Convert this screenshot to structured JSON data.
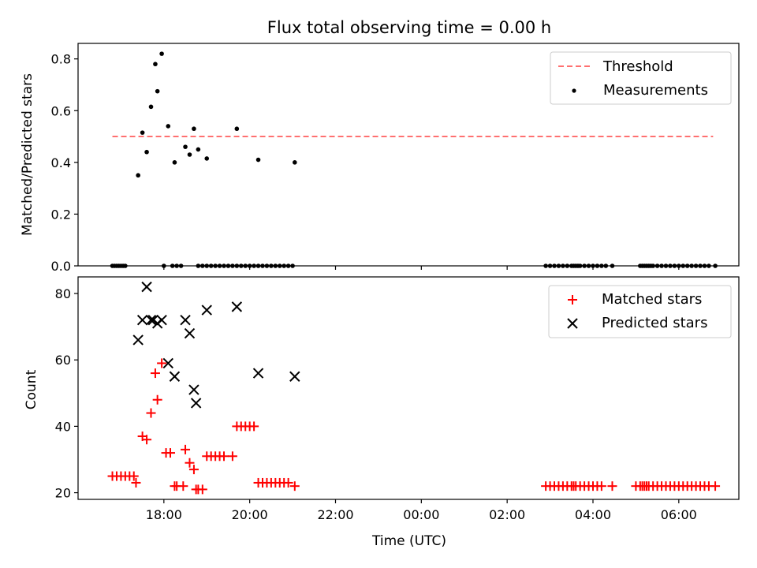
{
  "figure_title": "Flux total observing time = 0.00 h",
  "chart_data": [
    {
      "type": "scatter",
      "ylabel": "Matched/Predicted stars",
      "xlabel": "",
      "xlim_hours": [
        16.0,
        31.4
      ],
      "ylim": [
        0.0,
        0.86
      ],
      "yticks": [
        0.0,
        0.2,
        0.4,
        0.6,
        0.8
      ],
      "ytick_labels": [
        "0.0",
        "0.2",
        "0.4",
        "0.6",
        "0.8"
      ],
      "xticks_hours": [
        18,
        20,
        22,
        24,
        26,
        28,
        30
      ],
      "legend": {
        "placement": "upper right",
        "entries": [
          "Threshold",
          "Measurements"
        ]
      },
      "series": [
        {
          "name": "Threshold",
          "kind": "line",
          "style": "dashed",
          "color": "#ff7070",
          "x": [
            16.8,
            30.8
          ],
          "y": [
            0.5,
            0.5
          ]
        },
        {
          "name": "Measurements",
          "kind": "scatter",
          "color": "#000000",
          "x": [
            16.8,
            16.85,
            16.9,
            16.95,
            17.0,
            17.05,
            17.1,
            17.4,
            17.5,
            17.6,
            17.7,
            17.8,
            17.85,
            17.95,
            18.1,
            18.25,
            18.5,
            18.6,
            18.7,
            18.8,
            19.0,
            19.7,
            20.2,
            21.05,
            18.0,
            18.2,
            18.3,
            18.4,
            18.8,
            18.9,
            19.0,
            19.1,
            19.2,
            19.3,
            19.4,
            19.5,
            19.6,
            19.7,
            19.8,
            19.9,
            20.0,
            20.1,
            20.2,
            20.3,
            20.4,
            20.5,
            20.6,
            20.7,
            20.8,
            20.9,
            21.0,
            26.9,
            27.0,
            27.1,
            27.2,
            27.3,
            27.4,
            27.5,
            27.55,
            27.6,
            27.65,
            27.7,
            27.8,
            27.9,
            28.0,
            28.1,
            28.2,
            28.3,
            28.45,
            29.1,
            29.15,
            29.2,
            29.25,
            29.3,
            29.35,
            29.4,
            29.5,
            29.6,
            29.7,
            29.8,
            29.9,
            30.0,
            30.1,
            30.2,
            30.3,
            30.4,
            30.5,
            30.6,
            30.7,
            30.85
          ],
          "y": [
            0,
            0,
            0,
            0,
            0,
            0,
            0,
            0.35,
            0.515,
            0.44,
            0.615,
            0.78,
            0.675,
            0.82,
            0.54,
            0.4,
            0.46,
            0.43,
            0.53,
            0.45,
            0.415,
            0.53,
            0.41,
            0.4,
            0,
            0,
            0,
            0,
            0,
            0,
            0,
            0,
            0,
            0,
            0,
            0,
            0,
            0,
            0,
            0,
            0,
            0,
            0,
            0,
            0,
            0,
            0,
            0,
            0,
            0,
            0,
            0,
            0,
            0,
            0,
            0,
            0,
            0,
            0,
            0,
            0,
            0,
            0,
            0,
            0,
            0,
            0,
            0,
            0,
            0,
            0,
            0,
            0,
            0,
            0,
            0,
            0,
            0,
            0,
            0,
            0,
            0,
            0,
            0,
            0,
            0,
            0,
            0,
            0,
            0
          ]
        }
      ]
    },
    {
      "type": "scatter",
      "ylabel": "Count",
      "xlabel": "Time (UTC)",
      "xlim_hours": [
        16.0,
        31.4
      ],
      "ylim": [
        18,
        85
      ],
      "yticks": [
        20,
        40,
        60,
        80
      ],
      "ytick_labels": [
        "20",
        "40",
        "60",
        "80"
      ],
      "xticks_hours": [
        18,
        20,
        22,
        24,
        26,
        28,
        30
      ],
      "xtick_labels": [
        "18:00",
        "20:00",
        "22:00",
        "00:00",
        "02:00",
        "04:00",
        "06:00"
      ],
      "legend": {
        "placement": "upper right",
        "entries": [
          "Matched stars",
          "Predicted stars"
        ]
      },
      "series": [
        {
          "name": "Matched stars",
          "marker": "plus",
          "color": "#ff0000",
          "x": [
            16.8,
            16.9,
            17.0,
            17.1,
            17.2,
            17.3,
            17.35,
            17.5,
            17.6,
            17.7,
            17.8,
            17.85,
            17.95,
            18.05,
            18.15,
            18.25,
            18.3,
            18.45,
            18.5,
            18.6,
            18.7,
            18.75,
            18.8,
            18.9,
            19.0,
            19.1,
            19.2,
            19.3,
            19.4,
            19.6,
            19.7,
            19.8,
            19.9,
            20.0,
            20.1,
            20.2,
            20.3,
            20.4,
            20.5,
            20.6,
            20.7,
            20.8,
            20.9,
            21.05,
            26.9,
            27.0,
            27.1,
            27.2,
            27.3,
            27.4,
            27.5,
            27.55,
            27.6,
            27.7,
            27.8,
            27.9,
            28.0,
            28.1,
            28.2,
            28.45,
            29.0,
            29.1,
            29.15,
            29.2,
            29.25,
            29.3,
            29.4,
            29.5,
            29.6,
            29.7,
            29.8,
            29.9,
            30.0,
            30.1,
            30.2,
            30.3,
            30.4,
            30.5,
            30.6,
            30.7,
            30.85
          ],
          "y": [
            25,
            25,
            25,
            25,
            25,
            25,
            23,
            37,
            36,
            44,
            56,
            48,
            59,
            32,
            32,
            22,
            22,
            22,
            33,
            29,
            27,
            21,
            21,
            21,
            31,
            31,
            31,
            31,
            31,
            31,
            40,
            40,
            40,
            40,
            40,
            23,
            23,
            23,
            23,
            23,
            23,
            23,
            23,
            22,
            22,
            22,
            22,
            22,
            22,
            22,
            22,
            22,
            22,
            22,
            22,
            22,
            22,
            22,
            22,
            22,
            22,
            22,
            22,
            22,
            22,
            22,
            22,
            22,
            22,
            22,
            22,
            22,
            22,
            22,
            22,
            22,
            22,
            22,
            22,
            22,
            22
          ]
        },
        {
          "name": "Predicted stars",
          "marker": "x",
          "color": "#000000",
          "x": [
            17.4,
            17.5,
            17.6,
            17.7,
            17.75,
            17.85,
            17.95,
            18.1,
            18.25,
            18.5,
            18.6,
            18.7,
            18.75,
            19.0,
            19.7,
            20.2,
            21.05
          ],
          "y": [
            66,
            72,
            82,
            72,
            72,
            71,
            72,
            59,
            55,
            72,
            68,
            51,
            47,
            75,
            76,
            56,
            55
          ]
        }
      ]
    }
  ]
}
